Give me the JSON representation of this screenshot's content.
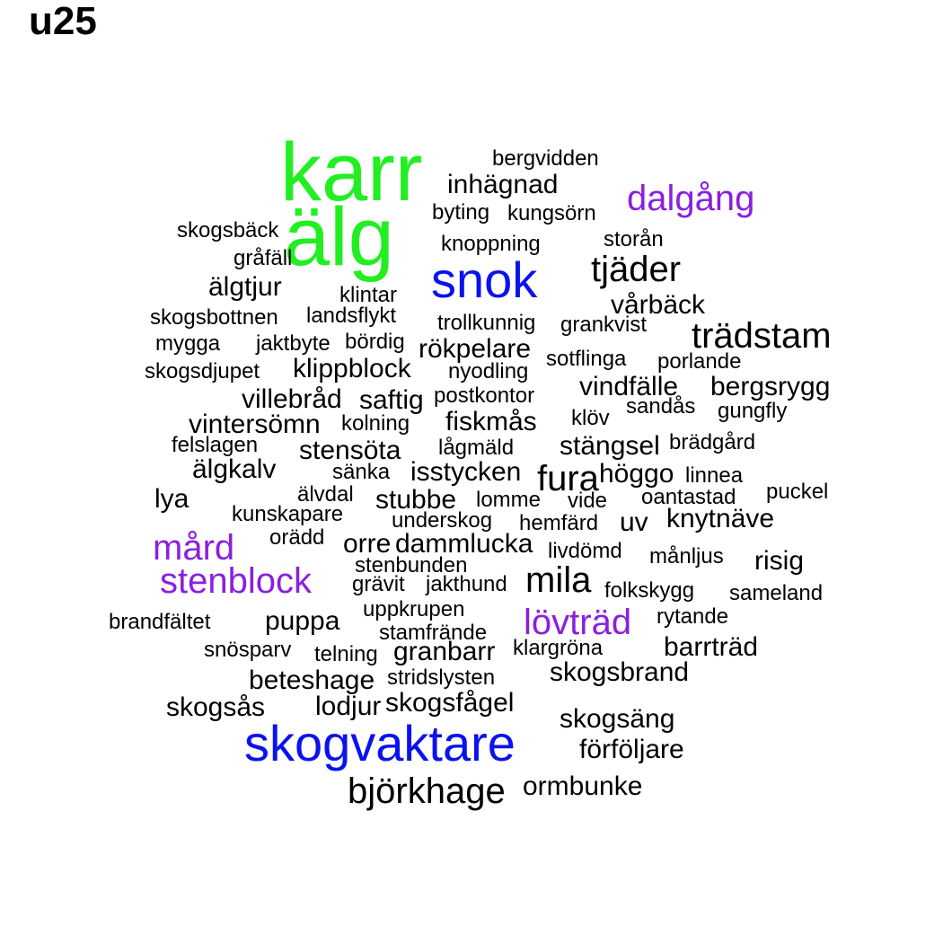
{
  "title": "u25",
  "colors": {
    "green": "#22ee22",
    "blue": "#0a12ee",
    "purple": "#8a1fe0",
    "black": "#000000"
  },
  "words": [
    {
      "text": "karr",
      "color": "green"
    },
    {
      "text": "älg",
      "color": "green"
    },
    {
      "text": "snok",
      "color": "blue"
    },
    {
      "text": "skogvaktare",
      "color": "blue"
    },
    {
      "text": "dalgång",
      "color": "purple"
    },
    {
      "text": "stenblock",
      "color": "purple"
    },
    {
      "text": "mård",
      "color": "purple"
    },
    {
      "text": "lövträd",
      "color": "purple"
    },
    {
      "text": "bergvidden",
      "color": "black"
    },
    {
      "text": "inhägnad",
      "color": "black"
    },
    {
      "text": "byting",
      "color": "black"
    },
    {
      "text": "kungsörn",
      "color": "black"
    },
    {
      "text": "skogsbäck",
      "color": "black"
    },
    {
      "text": "knoppning",
      "color": "black"
    },
    {
      "text": "storån",
      "color": "black"
    },
    {
      "text": "gråfäll",
      "color": "black"
    },
    {
      "text": "tjäder",
      "color": "black"
    },
    {
      "text": "älgtjur",
      "color": "black"
    },
    {
      "text": "klintar",
      "color": "black"
    },
    {
      "text": "vårbäck",
      "color": "black"
    },
    {
      "text": "skogsbottnen",
      "color": "black"
    },
    {
      "text": "landsflykt",
      "color": "black"
    },
    {
      "text": "trollkunnig",
      "color": "black"
    },
    {
      "text": "grankvist",
      "color": "black"
    },
    {
      "text": "mygga",
      "color": "black"
    },
    {
      "text": "jaktbyte",
      "color": "black"
    },
    {
      "text": "bördig",
      "color": "black"
    },
    {
      "text": "rökpelare",
      "color": "black"
    },
    {
      "text": "trädstam",
      "color": "black"
    },
    {
      "text": "sotflinga",
      "color": "black"
    },
    {
      "text": "porlande",
      "color": "black"
    },
    {
      "text": "skogsdjupet",
      "color": "black"
    },
    {
      "text": "klippblock",
      "color": "black"
    },
    {
      "text": "nyodling",
      "color": "black"
    },
    {
      "text": "vindfälle",
      "color": "black"
    },
    {
      "text": "bergsrygg",
      "color": "black"
    },
    {
      "text": "villebråd",
      "color": "black"
    },
    {
      "text": "saftig",
      "color": "black"
    },
    {
      "text": "postkontor",
      "color": "black"
    },
    {
      "text": "sandås",
      "color": "black"
    },
    {
      "text": "gungfly",
      "color": "black"
    },
    {
      "text": "vintersömn",
      "color": "black"
    },
    {
      "text": "kolning",
      "color": "black"
    },
    {
      "text": "fiskmås",
      "color": "black"
    },
    {
      "text": "klöv",
      "color": "black"
    },
    {
      "text": "felslagen",
      "color": "black"
    },
    {
      "text": "stensöta",
      "color": "black"
    },
    {
      "text": "lågmäld",
      "color": "black"
    },
    {
      "text": "stängsel",
      "color": "black"
    },
    {
      "text": "brädgård",
      "color": "black"
    },
    {
      "text": "älgkalv",
      "color": "black"
    },
    {
      "text": "sänka",
      "color": "black"
    },
    {
      "text": "isstycken",
      "color": "black"
    },
    {
      "text": "fura",
      "color": "black"
    },
    {
      "text": "höggo",
      "color": "black"
    },
    {
      "text": "linnea",
      "color": "black"
    },
    {
      "text": "lya",
      "color": "black"
    },
    {
      "text": "älvdal",
      "color": "black"
    },
    {
      "text": "stubbe",
      "color": "black"
    },
    {
      "text": "lomme",
      "color": "black"
    },
    {
      "text": "vide",
      "color": "black"
    },
    {
      "text": "oantastad",
      "color": "black"
    },
    {
      "text": "puckel",
      "color": "black"
    },
    {
      "text": "kunskapare",
      "color": "black"
    },
    {
      "text": "underskog",
      "color": "black"
    },
    {
      "text": "hemfärd",
      "color": "black"
    },
    {
      "text": "uv",
      "color": "black"
    },
    {
      "text": "knytnäve",
      "color": "black"
    },
    {
      "text": "orädd",
      "color": "black"
    },
    {
      "text": "orre",
      "color": "black"
    },
    {
      "text": "dammlucka",
      "color": "black"
    },
    {
      "text": "livdömd",
      "color": "black"
    },
    {
      "text": "månljus",
      "color": "black"
    },
    {
      "text": "risig",
      "color": "black"
    },
    {
      "text": "stenbunden",
      "color": "black"
    },
    {
      "text": "grävit",
      "color": "black"
    },
    {
      "text": "jakthund",
      "color": "black"
    },
    {
      "text": "mila",
      "color": "black"
    },
    {
      "text": "folkskygg",
      "color": "black"
    },
    {
      "text": "sameland",
      "color": "black"
    },
    {
      "text": "uppkrupen",
      "color": "black"
    },
    {
      "text": "brandfältet",
      "color": "black"
    },
    {
      "text": "puppa",
      "color": "black"
    },
    {
      "text": "rytande",
      "color": "black"
    },
    {
      "text": "stamfrände",
      "color": "black"
    },
    {
      "text": "snösparv",
      "color": "black"
    },
    {
      "text": "telning",
      "color": "black"
    },
    {
      "text": "granbarr",
      "color": "black"
    },
    {
      "text": "klargröna",
      "color": "black"
    },
    {
      "text": "barrträd",
      "color": "black"
    },
    {
      "text": "beteshage",
      "color": "black"
    },
    {
      "text": "stridslysten",
      "color": "black"
    },
    {
      "text": "skogsbrand",
      "color": "black"
    },
    {
      "text": "skogsås",
      "color": "black"
    },
    {
      "text": "lodjur",
      "color": "black"
    },
    {
      "text": "skogsfågel",
      "color": "black"
    },
    {
      "text": "skogsäng",
      "color": "black"
    },
    {
      "text": "förföljare",
      "color": "black"
    },
    {
      "text": "björkhage",
      "color": "black"
    },
    {
      "text": "ormbunke",
      "color": "black"
    }
  ]
}
